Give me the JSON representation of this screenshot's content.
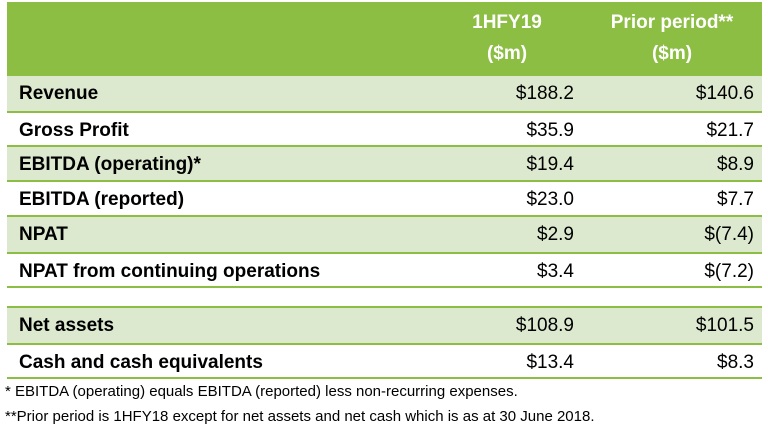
{
  "header": {
    "col1": [
      "1HFY19",
      "($m)"
    ],
    "col2": [
      "Prior period**",
      "($m)"
    ]
  },
  "rows": [
    {
      "label": "Revenue",
      "v1": "$188.2",
      "v2": "$140.6"
    },
    {
      "label": "Gross Profit",
      "v1": "$35.9",
      "v2": "$21.7"
    },
    {
      "label": "EBITDA (operating)*",
      "v1": "$19.4",
      "v2": "$8.9"
    },
    {
      "label": "EBITDA (reported)",
      "v1": "$23.0",
      "v2": "$7.7"
    },
    {
      "label": "NPAT",
      "v1": "$2.9",
      "v2": "$(7.4)"
    },
    {
      "label": "NPAT from continuing operations",
      "v1": "$3.4",
      "v2": "$(7.2)"
    },
    {
      "label": "Net assets",
      "v1": "$108.9",
      "v2": "$101.5"
    },
    {
      "label": "Cash and cash equivalents",
      "v1": "$13.4",
      "v2": "$8.3"
    }
  ],
  "footnotes": [
    "* EBITDA (operating) equals EBITDA (reported) less non-recurring expenses.",
    "**Prior period is 1HFY18 except for net assets and net cash which is as at 30 June 2018."
  ],
  "colors": {
    "header": "#8cbe44",
    "shade": "#dce9cf"
  }
}
